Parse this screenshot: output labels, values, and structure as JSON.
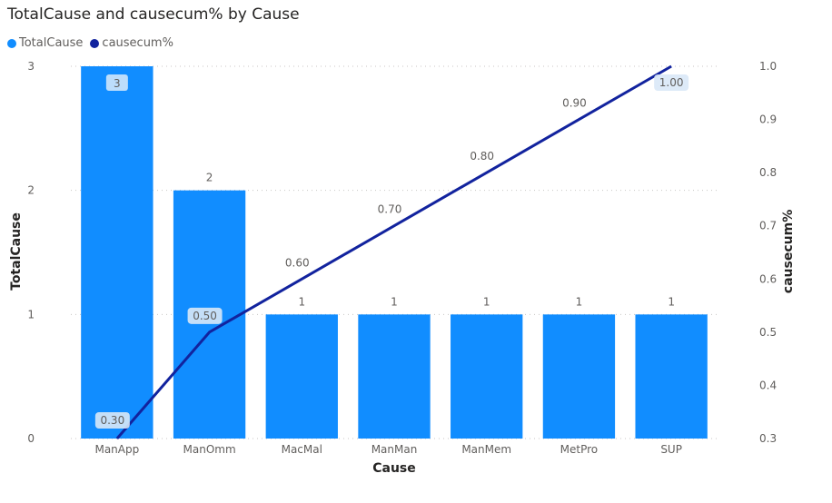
{
  "chart_data": {
    "type": "bar",
    "title": "TotalCause and causecum% by Cause",
    "categories": [
      "ManApp",
      "ManOmm",
      "MacMal",
      "ManMan",
      "ManMem",
      "MetPro",
      "SUP"
    ],
    "series": [
      {
        "name": "TotalCause",
        "kind": "bar",
        "axis": "left",
        "color": "#118dff",
        "values": [
          3,
          2,
          1,
          1,
          1,
          1,
          1
        ],
        "labels": [
          "3",
          "2",
          "1",
          "1",
          "1",
          "1",
          "1"
        ]
      },
      {
        "name": "causecum%",
        "kind": "line",
        "axis": "right",
        "color": "#12239e",
        "values": [
          0.3,
          0.5,
          0.6,
          0.7,
          0.8,
          0.9,
          1.0
        ],
        "labels": [
          "0.30",
          "0.50",
          "0.60",
          "0.70",
          "0.80",
          "0.90",
          "1.00"
        ]
      }
    ],
    "xlabel": "Cause",
    "ylabel": "TotalCause",
    "y2label": "causecum%",
    "ylim": [
      0,
      3
    ],
    "yticks": [
      "0",
      "1",
      "2",
      "3"
    ],
    "y2lim": [
      0.3,
      1.0
    ],
    "y2ticks": [
      "0.3",
      "0.4",
      "0.5",
      "0.6",
      "0.7",
      "0.8",
      "0.9",
      "1.0"
    ],
    "grid": true,
    "legend_position": "top-left"
  }
}
